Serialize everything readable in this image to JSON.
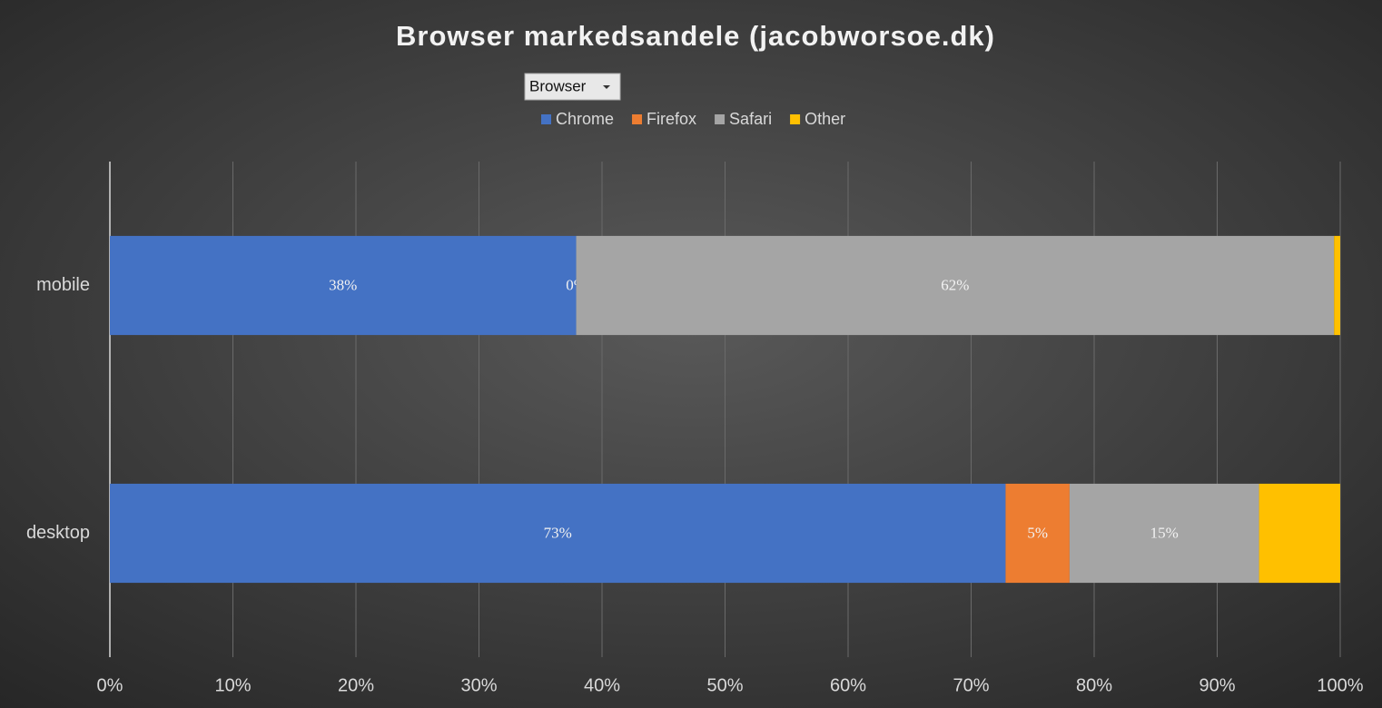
{
  "chart_data": {
    "type": "bar",
    "orientation": "horizontal",
    "stacked": true,
    "title": "Browser markedsandele (jacobworsoe.dk)",
    "field_button": "Browser",
    "categories": [
      "mobile",
      "desktop"
    ],
    "series": [
      {
        "name": "Chrome",
        "color": "#4472c4",
        "values": [
          37.9,
          72.8
        ],
        "value_labels": [
          "38%",
          "73%"
        ]
      },
      {
        "name": "Firefox",
        "color": "#ed7d31",
        "values": [
          0,
          5.2
        ],
        "value_labels": [
          "0%",
          "5%"
        ]
      },
      {
        "name": "Safari",
        "color": "#a5a5a5",
        "values": [
          61.6,
          15.4
        ],
        "value_labels": [
          "62%",
          "15%"
        ]
      },
      {
        "name": "Other",
        "color": "#ffc000",
        "values": [
          0.5,
          6.6
        ],
        "value_labels": [
          null,
          null
        ]
      }
    ],
    "xlim": [
      0,
      100
    ],
    "xticks": [
      {
        "value": 0,
        "label": "0%"
      },
      {
        "value": 10,
        "label": "10%"
      },
      {
        "value": 20,
        "label": "20%"
      },
      {
        "value": 30,
        "label": "30%"
      },
      {
        "value": 40,
        "label": "40%"
      },
      {
        "value": 50,
        "label": "50%"
      },
      {
        "value": 60,
        "label": "60%"
      },
      {
        "value": 70,
        "label": "70%"
      },
      {
        "value": 80,
        "label": "80%"
      },
      {
        "value": 90,
        "label": "90%"
      },
      {
        "value": 100,
        "label": "100%"
      }
    ],
    "grid": true,
    "legend": "top"
  }
}
